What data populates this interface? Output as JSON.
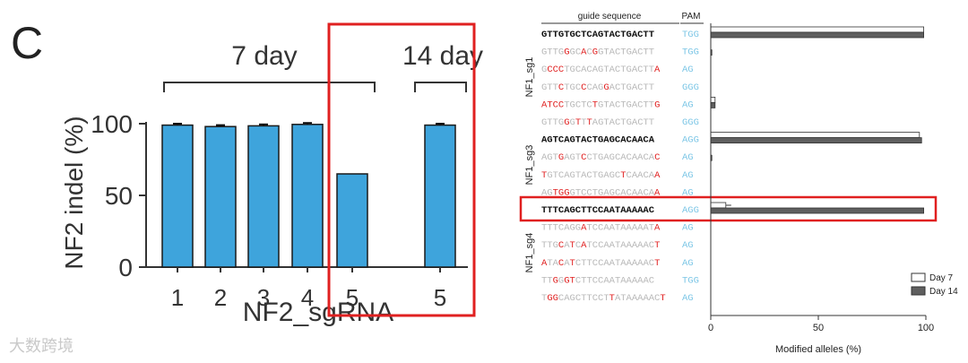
{
  "panel_label": "C",
  "watermark": "大数跨境",
  "colors": {
    "bar": "#3ea4dc",
    "highlight": "#e02020",
    "mismatch": "#e02020",
    "pam": "#7cc6e6",
    "faded": "#b8b8b8",
    "day7": "#ffffff",
    "day14": "#5f5f5f"
  },
  "chart_data": [
    {
      "type": "bar",
      "group_labels": [
        "7 day",
        "14 day"
      ],
      "categories": [
        "1",
        "2",
        "3",
        "4",
        "5",
        "5"
      ],
      "groups": [
        "7 day",
        "7 day",
        "7 day",
        "7 day",
        "7 day",
        "14 day"
      ],
      "values": [
        99,
        98,
        98.5,
        99.5,
        65,
        99
      ],
      "errors": [
        1,
        1,
        1,
        1,
        0,
        1
      ],
      "xlabel": "NF2_sgRNA",
      "ylabel": "NF2 indel (%)",
      "yticks": [
        "0",
        "50",
        "100"
      ],
      "ylim": [
        0,
        100
      ],
      "highlight": "14 day"
    },
    {
      "type": "bar",
      "orientation": "horizontal",
      "header_guide": "guide sequence",
      "header_pam": "PAM",
      "xlabel": "Modified alleles (%)",
      "xticks": [
        "0",
        "50",
        "100"
      ],
      "xlim": [
        0,
        100
      ],
      "legend": [
        "Day 7",
        "Day 14"
      ],
      "legend_position": "bottom-right",
      "groups": [
        {
          "label": "NF1_sg1",
          "rows": [
            {
              "segs": [
                [
                  "GTTGTGCTCAGTACTGACTT",
                  "t"
                ]
              ],
              "pam": "TGG",
              "target": true,
              "day7": 99,
              "day14": 99
            },
            {
              "segs": [
                [
                  "GTTG",
                  "f"
                ],
                [
                  "G",
                  "m"
                ],
                [
                  "GC",
                  "f"
                ],
                [
                  "A",
                  "m"
                ],
                [
                  "C",
                  "f"
                ],
                [
                  "G",
                  "m"
                ],
                [
                  "GTACTGACTT",
                  "f"
                ]
              ],
              "pam": "TGG",
              "day7": 0,
              "day14": 0.5
            },
            {
              "segs": [
                [
                  "G",
                  "f"
                ],
                [
                  "CCC",
                  "m"
                ],
                [
                  "TGCACAGTACTGACTT",
                  "f"
                ],
                [
                  "A",
                  "m"
                ]
              ],
              "pam": "AG",
              "day7": 0,
              "day14": 0
            },
            {
              "segs": [
                [
                  "GTT",
                  "f"
                ],
                [
                  "C",
                  "m"
                ],
                [
                  "TGC",
                  "f"
                ],
                [
                  "C",
                  "m"
                ],
                [
                  "CAG",
                  "f"
                ],
                [
                  "G",
                  "m"
                ],
                [
                  "ACTGACTT",
                  "f"
                ]
              ],
              "pam": "GGG",
              "day7": 0,
              "day14": 0
            },
            {
              "segs": [
                [
                  "A",
                  "m"
                ],
                [
                  "TCC",
                  "m"
                ],
                [
                  "TGCTC",
                  "f"
                ],
                [
                  "T",
                  "m"
                ],
                [
                  "GTACTGACTT",
                  "f"
                ],
                [
                  "G",
                  "m"
                ]
              ],
              "pam": "AG",
              "day7": 2,
              "day14": 2
            },
            {
              "segs": [
                [
                  "GTTG",
                  "f"
                ],
                [
                  "G",
                  "m"
                ],
                [
                  "G",
                  "f"
                ],
                [
                  "T",
                  "m"
                ],
                [
                  "T",
                  "f"
                ],
                [
                  "T",
                  "m"
                ],
                [
                  "AGTACTGACTT",
                  "f"
                ]
              ],
              "pam": "GGG",
              "day7": 0,
              "day14": 0
            }
          ]
        },
        {
          "label": "NF1_sg3",
          "rows": [
            {
              "segs": [
                [
                  "AGTCAGTACTGAGCACAACA",
                  "t"
                ]
              ],
              "pam": "AGG",
              "target": true,
              "day7": 97,
              "day14": 98
            },
            {
              "segs": [
                [
                  "AGT",
                  "f"
                ],
                [
                  "G",
                  "m"
                ],
                [
                  "AGT",
                  "f"
                ],
                [
                  "C",
                  "m"
                ],
                [
                  "CTGAGCACAACA",
                  "f"
                ],
                [
                  "C",
                  "m"
                ]
              ],
              "pam": "AG",
              "day7": 0,
              "day14": 0.5
            },
            {
              "segs": [
                [
                  "T",
                  "m"
                ],
                [
                  "GTCAGTACTGAGC",
                  "f"
                ],
                [
                  "T",
                  "m"
                ],
                [
                  "CAACA",
                  "f"
                ],
                [
                  "A",
                  "m"
                ]
              ],
              "pam": "AG",
              "day7": 0,
              "day14": 0
            },
            {
              "segs": [
                [
                  "AG",
                  "f"
                ],
                [
                  "T",
                  "m"
                ],
                [
                  "GG",
                  "m"
                ],
                [
                  "GTCCTGAGCACAACA",
                  "f"
                ],
                [
                  "A",
                  "m"
                ]
              ],
              "pam": "AG",
              "day7": 0,
              "day14": 0
            }
          ]
        },
        {
          "label": "NF1_sg4",
          "rows": [
            {
              "segs": [
                [
                  "TTTCAGCTTCCAATAAAAAC",
                  "t"
                ]
              ],
              "pam": "AGG",
              "target": true,
              "highlight": true,
              "day7": 7,
              "day14": 99
            },
            {
              "segs": [
                [
                  "TTTCAGG",
                  "f"
                ],
                [
                  "A",
                  "m"
                ],
                [
                  "TCCAATAAAAAT",
                  "f"
                ],
                [
                  "A",
                  "m"
                ]
              ],
              "pam": "AG",
              "day7": 0,
              "day14": 0
            },
            {
              "segs": [
                [
                  "TTG",
                  "f"
                ],
                [
                  "C",
                  "m"
                ],
                [
                  "A",
                  "f"
                ],
                [
                  "T",
                  "m"
                ],
                [
                  "C",
                  "f"
                ],
                [
                  "A",
                  "m"
                ],
                [
                  "TCCAATAAAAAC",
                  "f"
                ],
                [
                  "T",
                  "m"
                ]
              ],
              "pam": "AG",
              "day7": 0,
              "day14": 0
            },
            {
              "segs": [
                [
                  "A",
                  "m"
                ],
                [
                  "TA",
                  "f"
                ],
                [
                  "C",
                  "m"
                ],
                [
                  "A",
                  "f"
                ],
                [
                  "T",
                  "m"
                ],
                [
                  "CTTCCAATAAAAAC",
                  "f"
                ],
                [
                  "T",
                  "m"
                ]
              ],
              "pam": "AG",
              "day7": 0,
              "day14": 0
            },
            {
              "segs": [
                [
                  "TT",
                  "f"
                ],
                [
                  "G",
                  "m"
                ],
                [
                  "G",
                  "f"
                ],
                [
                  "GT",
                  "m"
                ],
                [
                  "CTTCCAATAAAAAC",
                  "f"
                ]
              ],
              "pam": "TGG",
              "day7": 0,
              "day14": 0
            },
            {
              "segs": [
                [
                  "T",
                  "f"
                ],
                [
                  "GG",
                  "m"
                ],
                [
                  "CAGCTTCCT",
                  "f"
                ],
                [
                  "T",
                  "m"
                ],
                [
                  "ATAAAAAC",
                  "f"
                ],
                [
                  "T",
                  "m"
                ]
              ],
              "pam": "AG",
              "day7": 0,
              "day14": 0
            }
          ]
        }
      ]
    }
  ]
}
